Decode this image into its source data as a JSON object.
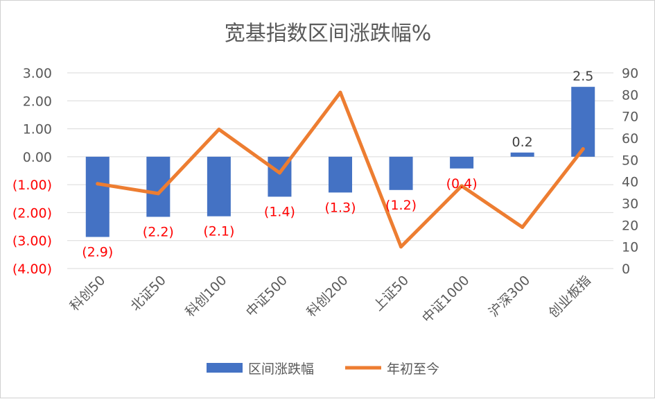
{
  "chart_data": {
    "type": "bar+line",
    "title": "宽基指数区间涨跌幅%",
    "categories": [
      "科创50",
      "北证50",
      "科创100",
      "中证500",
      "科创200",
      "上证50",
      "中证1000",
      "沪深300",
      "创业板指"
    ],
    "series": [
      {
        "name": "区间涨跌幅",
        "type": "bar",
        "axis": "left",
        "color": "#4472C4",
        "values": [
          -2.87,
          -2.15,
          -2.13,
          -1.43,
          -1.28,
          -1.19,
          -0.42,
          0.15,
          2.5
        ],
        "labels": [
          "(2.9)",
          "(2.2)",
          "(2.1)",
          "(1.4)",
          "(1.3)",
          "(1.2)",
          "(0.4)",
          "0.2",
          "2.5"
        ]
      },
      {
        "name": "年初至今",
        "type": "line",
        "axis": "right",
        "color": "#ED7D31",
        "values": [
          39,
          34.5,
          64,
          44,
          81,
          10,
          38,
          19,
          55
        ]
      }
    ],
    "y_left": {
      "min": -4,
      "max": 3,
      "step": 1,
      "tick_labels": [
        "(4.00)",
        "(3.00)",
        "(2.00)",
        "(1.00)",
        "0.00",
        "1.00",
        "2.00",
        "3.00"
      ],
      "negative_color": "#FF0000"
    },
    "y_right": {
      "min": 0,
      "max": 90,
      "step": 10,
      "tick_labels": [
        "0",
        "10",
        "20",
        "30",
        "40",
        "50",
        "60",
        "70",
        "80",
        "90"
      ]
    },
    "grid": true,
    "legend_position": "bottom",
    "negative_label_color": "#FF0000",
    "positive_label_color": "#404040",
    "gridline_color": "#D9D9D9",
    "text_color": "#595959"
  }
}
